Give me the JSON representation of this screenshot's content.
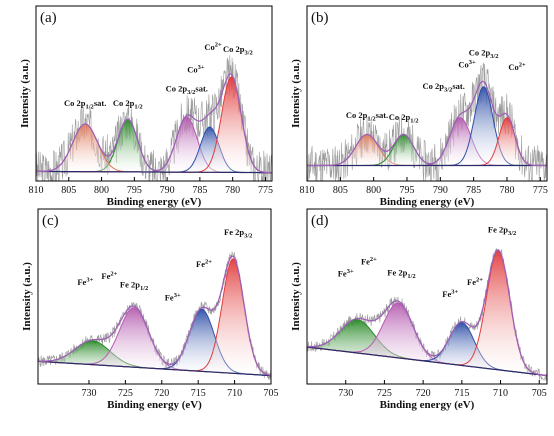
{
  "chart_data": [
    {
      "type": "area",
      "panel_label": "(a)",
      "xlabel": "Binding energy (eV)",
      "ylabel": "Intensity (a.u.)",
      "xlim": [
        810,
        774
      ],
      "xticks": [
        810,
        805,
        800,
        795,
        790,
        785,
        780,
        775
      ],
      "noise_seed": 3,
      "baseline": {
        "start": 0.03,
        "end": 0.02
      },
      "envelope_color": "#6a2c7a",
      "fit_color": "#a060b8",
      "peaks": [
        {
          "center": 796.0,
          "height": 0.44,
          "width": 1.5,
          "color": "#2a8a2a"
        },
        {
          "center": 802.5,
          "height": 0.4,
          "width": 1.9,
          "color": "#e07a5a"
        },
        {
          "center": 787.0,
          "height": 0.46,
          "width": 1.6,
          "color": "#b55cb0"
        },
        {
          "center": 783.5,
          "height": 0.38,
          "width": 1.4,
          "color": "#2e4fa8"
        },
        {
          "center": 780.2,
          "height": 0.8,
          "width": 1.5,
          "color": "#e23b3b"
        }
      ],
      "annotations": [
        {
          "text": "Co 2p",
          "sub": "1/2",
          "suffix": "sat.",
          "x": 802.5,
          "y": 0.58
        },
        {
          "text": "Co 2p",
          "sub": "1/2",
          "suffix": "",
          "x": 796.0,
          "y": 0.58
        },
        {
          "text": "Co 2p",
          "sub": "3/2",
          "suffix": "sat.",
          "x": 787.0,
          "y": 0.7
        },
        {
          "text": "Co",
          "sup": "3+",
          "x": 785.6,
          "y": 0.86
        },
        {
          "text": "Co",
          "sup": "2+",
          "x": 783.0,
          "y": 1.05
        },
        {
          "text": "Co 2p",
          "sub": "3/2",
          "suffix": "",
          "x": 779.2,
          "y": 1.03
        }
      ]
    },
    {
      "type": "area",
      "panel_label": "(b)",
      "xlabel": "Binding energy (eV)",
      "ylabel": "Intensity (a.u.)",
      "xlim": [
        810,
        774
      ],
      "xticks": [
        810,
        805,
        800,
        795,
        790,
        785,
        780,
        775
      ],
      "noise_seed": 11,
      "baseline": {
        "start": 0.08,
        "end": 0.08
      },
      "envelope_color": "#6a2c7a",
      "fit_color": "#a060b8",
      "peaks": [
        {
          "center": 801.0,
          "height": 0.26,
          "width": 1.7,
          "color": "#e07a5a"
        },
        {
          "center": 795.5,
          "height": 0.26,
          "width": 1.5,
          "color": "#2a8a2a"
        },
        {
          "center": 787.0,
          "height": 0.4,
          "width": 1.6,
          "color": "#b55cb0"
        },
        {
          "center": 783.5,
          "height": 0.66,
          "width": 1.4,
          "color": "#2e4fa8"
        },
        {
          "center": 780.0,
          "height": 0.4,
          "width": 1.2,
          "color": "#e23b3b"
        }
      ],
      "annotations": [
        {
          "text": "Co 2p",
          "sub": "1/2",
          "suffix": "sat.",
          "x": 801.0,
          "y": 0.48
        },
        {
          "text": "Co 2p",
          "sub": "1/2",
          "suffix": "",
          "x": 795.5,
          "y": 0.46
        },
        {
          "text": "Co 2p",
          "sub": "3/2",
          "suffix": "sat.",
          "x": 789.5,
          "y": 0.72
        },
        {
          "text": "Co",
          "sup": "3+",
          "x": 786.0,
          "y": 0.9
        },
        {
          "text": "Co 2p",
          "sub": "3/2",
          "suffix": "",
          "x": 783.5,
          "y": 1.0
        },
        {
          "text": "Co",
          "sup": "2+",
          "x": 778.5,
          "y": 0.88
        }
      ]
    },
    {
      "type": "area",
      "panel_label": "(c)",
      "xlabel": "Binding energy (eV)",
      "ylabel": "Intensity (a.u.)",
      "xlim": [
        737,
        705
      ],
      "xticks": [
        730,
        725,
        720,
        715,
        710,
        705
      ],
      "noise_seed": 5,
      "baseline": {
        "start": 0.14,
        "end": 0.02
      },
      "envelope_color": "#6a2c7a",
      "fit_color": "#a060b8",
      "peaks": [
        {
          "center": 729.5,
          "height": 0.2,
          "width": 2.4,
          "color": "#2a8a2a"
        },
        {
          "center": 723.8,
          "height": 0.5,
          "width": 2.0,
          "color": "#b55cb0"
        },
        {
          "center": 714.5,
          "height": 0.52,
          "width": 1.7,
          "color": "#2e4fa8"
        },
        {
          "center": 710.2,
          "height": 0.96,
          "width": 1.5,
          "color": "#e23b3b"
        }
      ],
      "annotations": [
        {
          "text": "Fe",
          "sup": "3+",
          "x": 730.5,
          "y": 0.78
        },
        {
          "text": "Fe",
          "sup": "2+",
          "x": 727.2,
          "y": 0.83
        },
        {
          "text": "Fe 2p",
          "sub": "1/2",
          "suffix": "",
          "x": 723.8,
          "y": 0.76
        },
        {
          "text": "Fe",
          "sup": "3+",
          "x": 718.5,
          "y": 0.65
        },
        {
          "text": "Fe",
          "sup": "2+",
          "x": 714.2,
          "y": 0.93
        },
        {
          "text": "Fe 2p",
          "sub": "3/2",
          "suffix": "",
          "x": 709.5,
          "y": 1.2
        }
      ]
    },
    {
      "type": "area",
      "panel_label": "(d)",
      "xlabel": "Binding energy (eV)",
      "ylabel": "Intensity (a.u.)",
      "xlim": [
        735,
        704
      ],
      "xticks": [
        730,
        725,
        720,
        715,
        710,
        705
      ],
      "noise_seed": 17,
      "baseline": {
        "start": 0.26,
        "end": 0.02
      },
      "envelope_color": "#6a2c7a",
      "fit_color": "#a060b8",
      "peaks": [
        {
          "center": 728.5,
          "height": 0.28,
          "width": 2.2,
          "color": "#2a8a2a"
        },
        {
          "center": 723.2,
          "height": 0.46,
          "width": 1.9,
          "color": "#b55cb0"
        },
        {
          "center": 715.0,
          "height": 0.36,
          "width": 1.6,
          "color": "#2e4fa8"
        },
        {
          "center": 710.3,
          "height": 1.0,
          "width": 1.5,
          "color": "#e23b3b"
        }
      ],
      "annotations": [
        {
          "text": "Fe",
          "sup": "3+",
          "x": 730.0,
          "y": 0.85
        },
        {
          "text": "Fe",
          "sup": "2+",
          "x": 727.0,
          "y": 0.95
        },
        {
          "text": "Fe 2p",
          "sub": "1/2",
          "suffix": "",
          "x": 722.8,
          "y": 0.86
        },
        {
          "text": "Fe",
          "sup": "3+",
          "x": 716.5,
          "y": 0.68
        },
        {
          "text": "Fe",
          "sup": "2+",
          "x": 713.3,
          "y": 0.78
        },
        {
          "text": "Fe 2p",
          "sub": "3/2",
          "suffix": "",
          "x": 709.8,
          "y": 1.22
        }
      ]
    }
  ]
}
